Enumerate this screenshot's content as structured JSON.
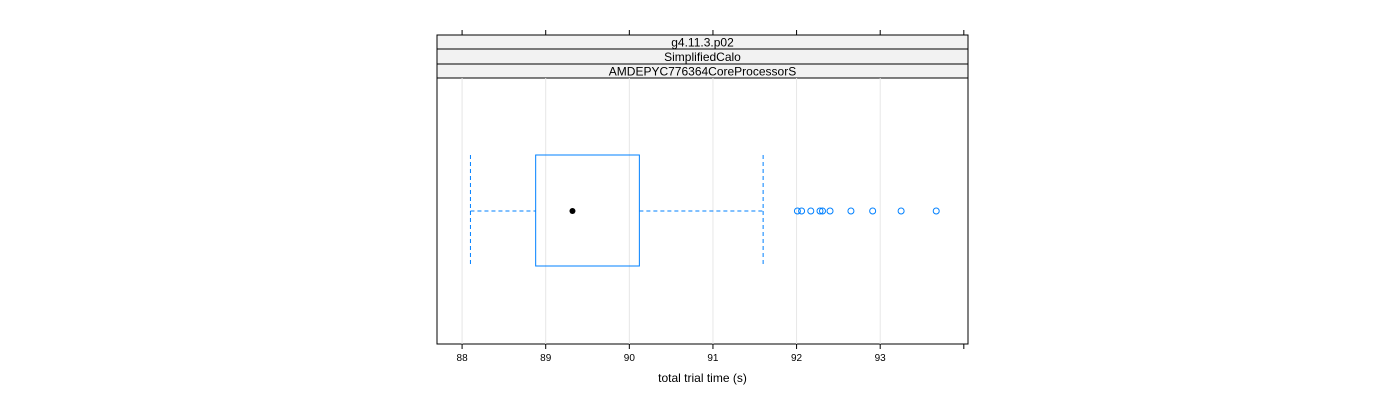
{
  "chart_data": {
    "type": "boxplot",
    "orientation": "horizontal",
    "strips": [
      "g4.11.3.p02",
      "SimplifiedCalo",
      "AMDEPYC776364CoreProcessorS"
    ],
    "xlabel": "total trial time (s)",
    "xlim": [
      87.7,
      94.05
    ],
    "xticks": [
      88,
      89,
      90,
      91,
      92,
      93
    ],
    "grid": true,
    "box": {
      "whisker_low": 88.1,
      "q1": 88.88,
      "median": 89.32,
      "q3": 90.12,
      "whisker_high": 91.6
    },
    "outliers": [
      92.01,
      92.06,
      92.17,
      92.28,
      92.31,
      92.4,
      92.65,
      92.91,
      93.25,
      93.67
    ],
    "colors": {
      "box": "#0080ff",
      "strip_fill": "#f2f2f2",
      "grid": "#e6e6e6",
      "median_dot": "#000000"
    }
  }
}
